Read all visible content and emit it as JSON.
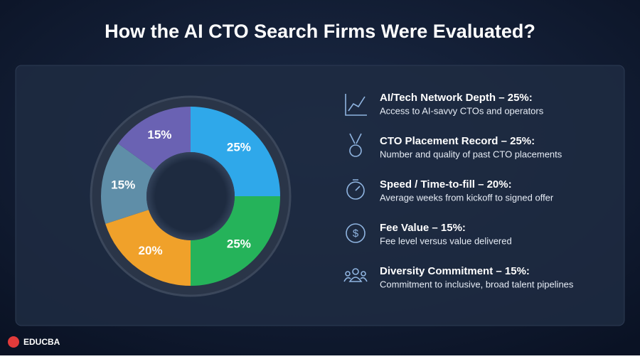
{
  "chart_data": {
    "type": "pie",
    "title": "How the AI CTO Search Firms Were Evaluated?",
    "values": [
      25,
      25,
      20,
      15,
      15
    ],
    "value_labels": [
      "25%",
      "25%",
      "20%",
      "15%",
      "15%"
    ],
    "colors": [
      "#2fa8ea",
      "#25b35a",
      "#f0a12a",
      "#5f8ea8",
      "#6a62b3"
    ]
  },
  "criteria": [
    {
      "title": "AI/Tech Network Depth – 25%:",
      "description": "Access to AI-savvy CTOs and operators"
    },
    {
      "title": "CTO Placement Record – 25%:",
      "description": "Number and quality of past CTO placements"
    },
    {
      "title": "Speed / Time-to-fill – 20%:",
      "description": "Average weeks from kickoff to signed offer"
    },
    {
      "title": "Fee Value – 15%:",
      "description": "Fee level versus value delivered"
    },
    {
      "title": "Diversity Commitment – 15%:",
      "description": "Commitment to inclusive, broad talent pipelines"
    }
  ],
  "logo": "EDUCBA"
}
